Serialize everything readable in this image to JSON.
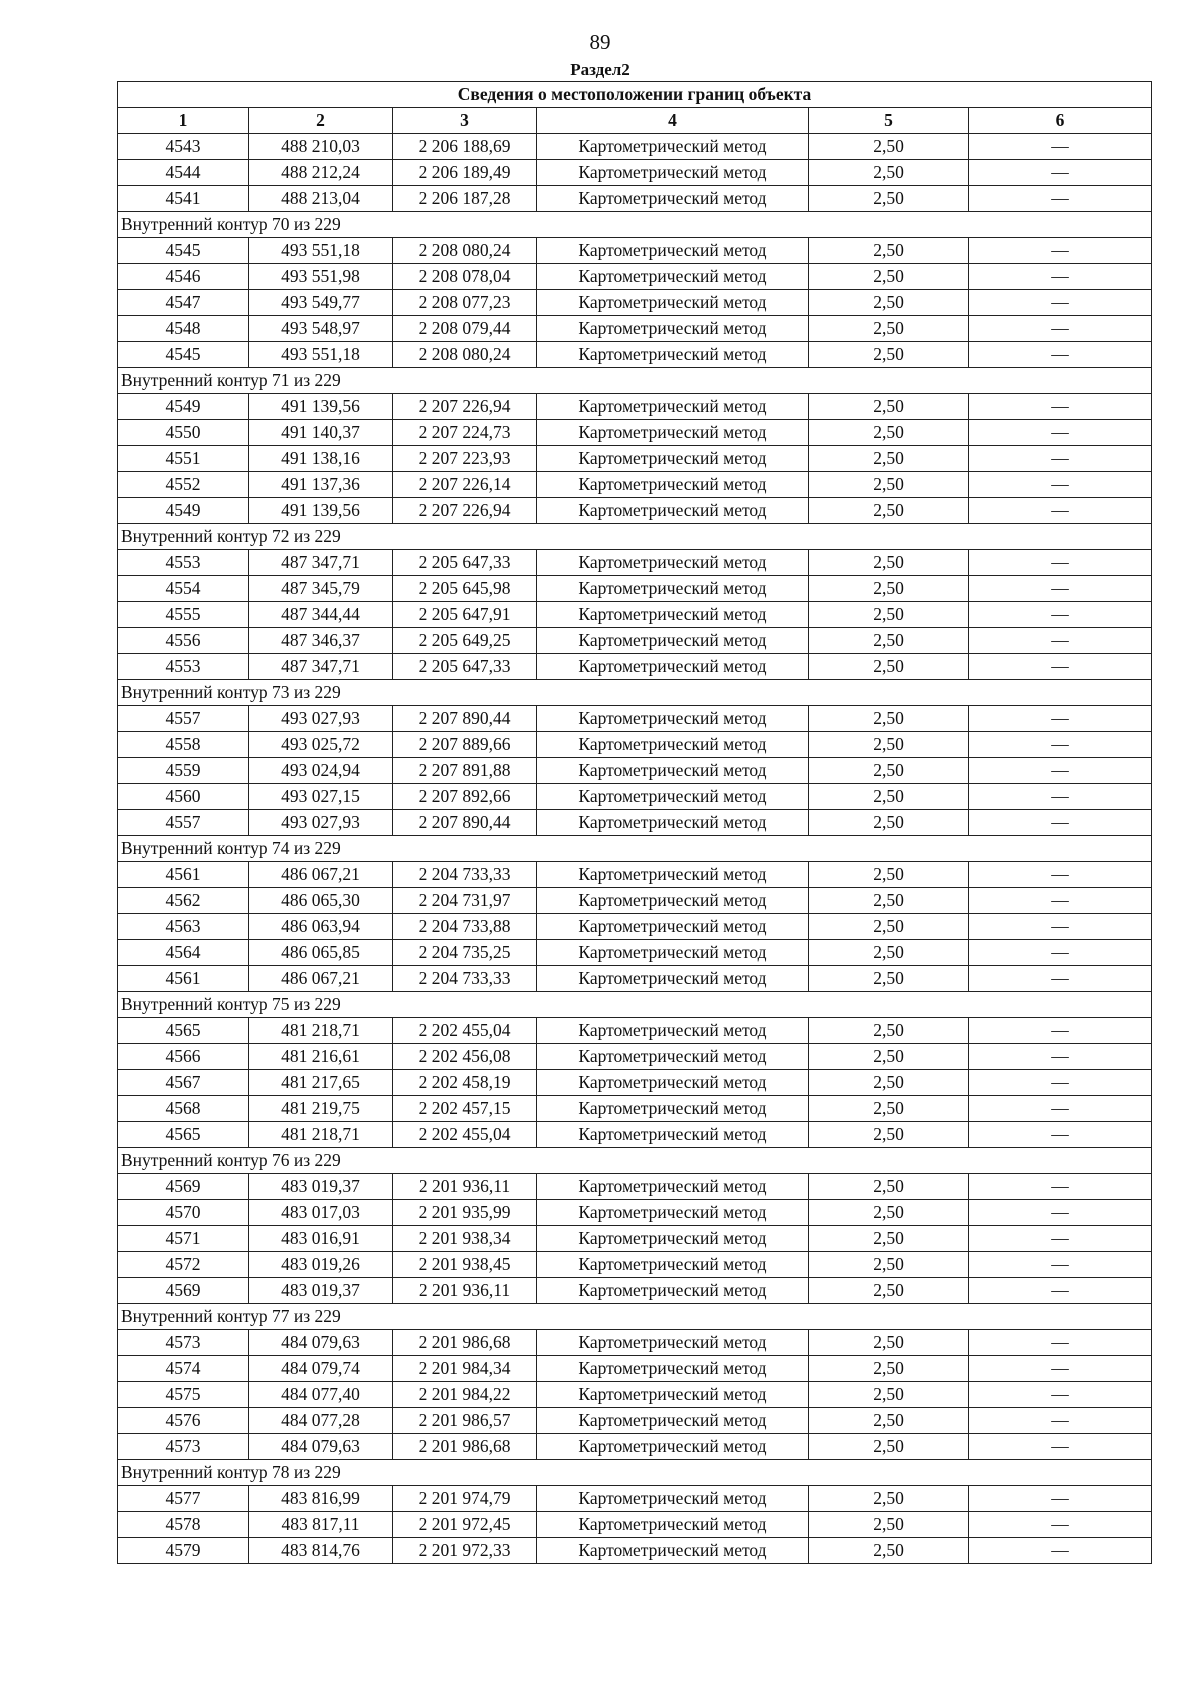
{
  "page_number": "89",
  "section": "Раздел2",
  "table": {
    "title": "Сведения о местоположении границ объекта",
    "headers": [
      "1",
      "2",
      "3",
      "4",
      "5",
      "6"
    ],
    "rows": [
      [
        "4543",
        "488 210,03",
        "2 206 188,69",
        "Картометрический метод",
        "2,50",
        "—"
      ],
      [
        "4544",
        "488 212,24",
        "2 206 189,49",
        "Картометрический метод",
        "2,50",
        "—"
      ],
      [
        "4541",
        "488 213,04",
        "2 206 187,28",
        "Картометрический метод",
        "2,50",
        "—"
      ],
      {
        "contour": "Внутренний контур 70 из 229"
      },
      [
        "4545",
        "493 551,18",
        "2 208 080,24",
        "Картометрический метод",
        "2,50",
        "—"
      ],
      [
        "4546",
        "493 551,98",
        "2 208 078,04",
        "Картометрический метод",
        "2,50",
        "—"
      ],
      [
        "4547",
        "493 549,77",
        "2 208 077,23",
        "Картометрический метод",
        "2,50",
        "—"
      ],
      [
        "4548",
        "493 548,97",
        "2 208 079,44",
        "Картометрический метод",
        "2,50",
        "—"
      ],
      [
        "4545",
        "493 551,18",
        "2 208 080,24",
        "Картометрический метод",
        "2,50",
        "—"
      ],
      {
        "contour": "Внутренний контур 71 из 229"
      },
      [
        "4549",
        "491 139,56",
        "2 207 226,94",
        "Картометрический метод",
        "2,50",
        "—"
      ],
      [
        "4550",
        "491 140,37",
        "2 207 224,73",
        "Картометрический метод",
        "2,50",
        "—"
      ],
      [
        "4551",
        "491 138,16",
        "2 207 223,93",
        "Картометрический метод",
        "2,50",
        "—"
      ],
      [
        "4552",
        "491 137,36",
        "2 207 226,14",
        "Картометрический метод",
        "2,50",
        "—"
      ],
      [
        "4549",
        "491 139,56",
        "2 207 226,94",
        "Картометрический метод",
        "2,50",
        "—"
      ],
      {
        "contour": "Внутренний контур 72 из 229"
      },
      [
        "4553",
        "487 347,71",
        "2 205 647,33",
        "Картометрический метод",
        "2,50",
        "—"
      ],
      [
        "4554",
        "487 345,79",
        "2 205 645,98",
        "Картометрический метод",
        "2,50",
        "—"
      ],
      [
        "4555",
        "487 344,44",
        "2 205 647,91",
        "Картометрический метод",
        "2,50",
        "—"
      ],
      [
        "4556",
        "487 346,37",
        "2 205 649,25",
        "Картометрический метод",
        "2,50",
        "—"
      ],
      [
        "4553",
        "487 347,71",
        "2 205 647,33",
        "Картометрический метод",
        "2,50",
        "—"
      ],
      {
        "contour": "Внутренний контур 73 из 229"
      },
      [
        "4557",
        "493 027,93",
        "2 207 890,44",
        "Картометрический метод",
        "2,50",
        "—"
      ],
      [
        "4558",
        "493 025,72",
        "2 207 889,66",
        "Картометрический метод",
        "2,50",
        "—"
      ],
      [
        "4559",
        "493 024,94",
        "2 207 891,88",
        "Картометрический метод",
        "2,50",
        "—"
      ],
      [
        "4560",
        "493 027,15",
        "2 207 892,66",
        "Картометрический метод",
        "2,50",
        "—"
      ],
      [
        "4557",
        "493 027,93",
        "2 207 890,44",
        "Картометрический метод",
        "2,50",
        "—"
      ],
      {
        "contour": "Внутренний контур 74 из 229"
      },
      [
        "4561",
        "486 067,21",
        "2 204 733,33",
        "Картометрический метод",
        "2,50",
        "—"
      ],
      [
        "4562",
        "486 065,30",
        "2 204 731,97",
        "Картометрический метод",
        "2,50",
        "—"
      ],
      [
        "4563",
        "486 063,94",
        "2 204 733,88",
        "Картометрический метод",
        "2,50",
        "—"
      ],
      [
        "4564",
        "486 065,85",
        "2 204 735,25",
        "Картометрический метод",
        "2,50",
        "—"
      ],
      [
        "4561",
        "486 067,21",
        "2 204 733,33",
        "Картометрический метод",
        "2,50",
        "—"
      ],
      {
        "contour": "Внутренний контур 75 из 229"
      },
      [
        "4565",
        "481 218,71",
        "2 202 455,04",
        "Картометрический метод",
        "2,50",
        "—"
      ],
      [
        "4566",
        "481 216,61",
        "2 202 456,08",
        "Картометрический метод",
        "2,50",
        "—"
      ],
      [
        "4567",
        "481 217,65",
        "2 202 458,19",
        "Картометрический метод",
        "2,50",
        "—"
      ],
      [
        "4568",
        "481 219,75",
        "2 202 457,15",
        "Картометрический метод",
        "2,50",
        "—"
      ],
      [
        "4565",
        "481 218,71",
        "2 202 455,04",
        "Картометрический метод",
        "2,50",
        "—"
      ],
      {
        "contour": "Внутренний контур 76 из 229"
      },
      [
        "4569",
        "483 019,37",
        "2 201 936,11",
        "Картометрический метод",
        "2,50",
        "—"
      ],
      [
        "4570",
        "483 017,03",
        "2 201 935,99",
        "Картометрический метод",
        "2,50",
        "—"
      ],
      [
        "4571",
        "483 016,91",
        "2 201 938,34",
        "Картометрический метод",
        "2,50",
        "—"
      ],
      [
        "4572",
        "483 019,26",
        "2 201 938,45",
        "Картометрический метод",
        "2,50",
        "—"
      ],
      [
        "4569",
        "483 019,37",
        "2 201 936,11",
        "Картометрический метод",
        "2,50",
        "—"
      ],
      {
        "contour": "Внутренний контур 77 из 229"
      },
      [
        "4573",
        "484 079,63",
        "2 201 986,68",
        "Картометрический метод",
        "2,50",
        "—"
      ],
      [
        "4574",
        "484 079,74",
        "2 201 984,34",
        "Картометрический метод",
        "2,50",
        "—"
      ],
      [
        "4575",
        "484 077,40",
        "2 201 984,22",
        "Картометрический метод",
        "2,50",
        "—"
      ],
      [
        "4576",
        "484 077,28",
        "2 201 986,57",
        "Картометрический метод",
        "2,50",
        "—"
      ],
      [
        "4573",
        "484 079,63",
        "2 201 986,68",
        "Картометрический метод",
        "2,50",
        "—"
      ],
      {
        "contour": "Внутренний контур 78 из 229"
      },
      [
        "4577",
        "483 816,99",
        "2 201 974,79",
        "Картометрический метод",
        "2,50",
        "—"
      ],
      [
        "4578",
        "483 817,11",
        "2 201 972,45",
        "Картометрический метод",
        "2,50",
        "—"
      ],
      [
        "4579",
        "483 814,76",
        "2 201 972,33",
        "Картометрический метод",
        "2,50",
        "—"
      ]
    ]
  }
}
